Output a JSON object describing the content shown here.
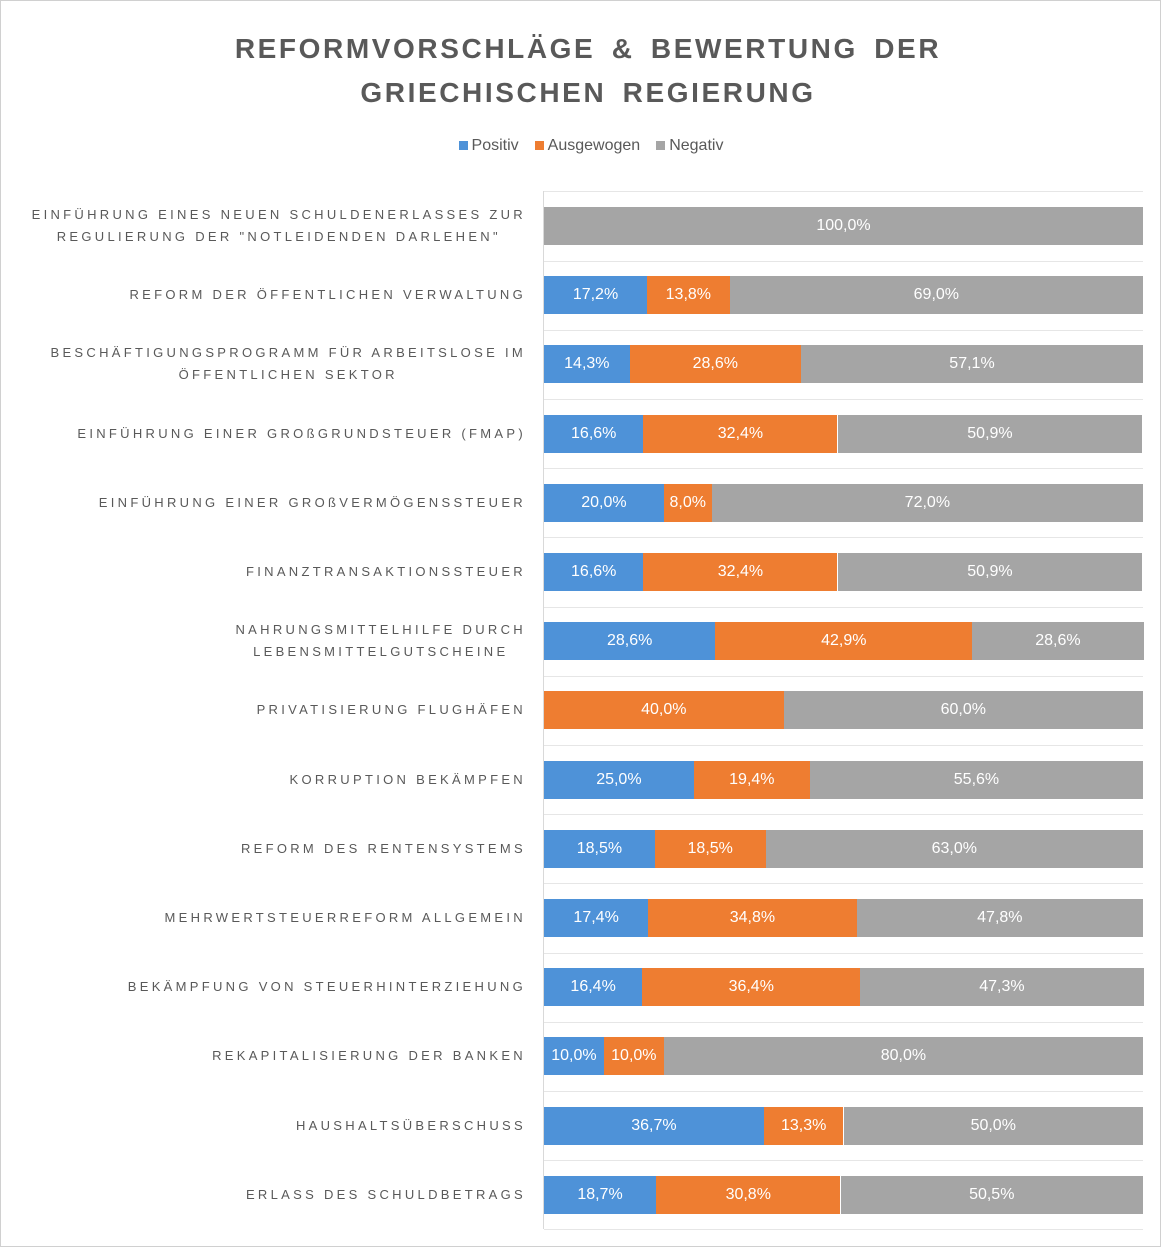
{
  "chart_data": {
    "type": "stacked-bar-horizontal",
    "title": "REFORMVORSCHLÄGE & BEWERTUNG DER GRIECHISCHEN REGIERUNG",
    "categories": [
      "EINFÜHRUNG EINES NEUEN SCHULDENERLASSES ZUR\nREGULIERUNG DER \"NOTLEIDENDEN DARLEHEN\"",
      "REFORM DER ÖFFENTLICHEN VERWALTUNG",
      "BESCHÄFTIGUNGSPROGRAMM FÜR ARBEITSLOSE IM\nÖFFENTLICHEN SEKTOR",
      "EINFÜHRUNG EINER GROßGRUNDSTEUER (FMAP)",
      "EINFÜHRUNG EINER GROßVERMÖGENSSTEUER",
      "FINANZTRANSAKTIONSSTEUER",
      "NAHRUNGSMITTELHILFE DURCH\nLEBENSMITTELGUTSCHEINE",
      "PRIVATISIERUNG FLUGHÄFEN",
      "KORRUPTION BEKÄMPFEN",
      "REFORM DES RENTENSYSTEMS",
      "MEHRWERTSTEUERREFORM ALLGEMEIN",
      "BEKÄMPFUNG VON STEUERHINTERZIEHUNG",
      "REKAPITALISIERUNG DER BANKEN",
      "HAUSHALTSÜBERSCHUSS",
      "ERLASS DES SCHULDBETRAGS"
    ],
    "series": [
      {
        "name": "Positiv",
        "color": "#4e92d8",
        "values": [
          0,
          17.2,
          14.3,
          16.6,
          20.0,
          16.6,
          28.6,
          0,
          25.0,
          18.5,
          17.4,
          16.4,
          10.0,
          36.7,
          18.7
        ],
        "value_labels": [
          null,
          "17,2%",
          "14,3%",
          "16,6%",
          "20,0%",
          "16,6%",
          "28,6%",
          null,
          "25,0%",
          "18,5%",
          "17,4%",
          "16,4%",
          "10,0%",
          "36,7%",
          "18,7%"
        ]
      },
      {
        "name": "Ausgewogen",
        "color": "#ee7d31",
        "values": [
          0,
          13.8,
          28.6,
          32.4,
          8.0,
          32.4,
          42.9,
          40.0,
          19.4,
          18.5,
          34.8,
          36.4,
          10.0,
          13.3,
          30.8
        ],
        "value_labels": [
          null,
          "13,8%",
          "28,6%",
          "32,4%",
          "8,0%",
          "32,4%",
          "42,9%",
          "40,0%",
          "19,4%",
          "18,5%",
          "34,8%",
          "36,4%",
          "10,0%",
          "13,3%",
          "30,8%"
        ]
      },
      {
        "name": "Negativ",
        "color": "#a5a5a5",
        "values": [
          100.0,
          69.0,
          57.1,
          50.9,
          72.0,
          50.9,
          28.6,
          60.0,
          55.6,
          63.0,
          47.8,
          47.3,
          80.0,
          50.0,
          50.5
        ],
        "value_labels": [
          "100,0%",
          "69,0%",
          "57,1%",
          "50,9%",
          "72,0%",
          "50,9%",
          "28,6%",
          "60,0%",
          "55,6%",
          "63,0%",
          "47,8%",
          "47,3%",
          "80,0%",
          "50,0%",
          "50,5%"
        ]
      }
    ],
    "xlim": [
      0,
      100
    ],
    "legend": "top"
  }
}
